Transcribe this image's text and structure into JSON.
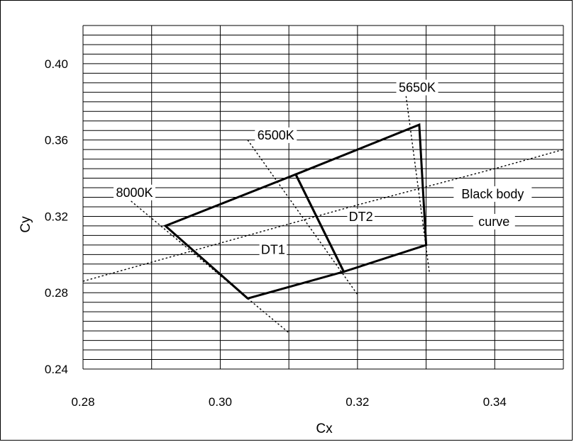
{
  "chart_data": {
    "type": "line",
    "title": "",
    "xlabel": "Cx",
    "ylabel": "Cy",
    "xlim": [
      0.28,
      0.35
    ],
    "ylim": [
      0.24,
      0.42
    ],
    "xticks": [
      "0.28",
      "0.30",
      "0.32",
      "0.34"
    ],
    "yticks": [
      "0.24",
      "0.28",
      "0.32",
      "0.36",
      "0.40"
    ],
    "grid": true,
    "series": [
      {
        "name": "DT1",
        "style": "solid",
        "points": [
          [
            0.311,
            0.342
          ],
          [
            0.292,
            0.315
          ],
          [
            0.304,
            0.277
          ],
          [
            0.318,
            0.291
          ]
        ]
      },
      {
        "name": "DT2",
        "style": "solid",
        "points": [
          [
            0.311,
            0.342
          ],
          [
            0.329,
            0.368
          ],
          [
            0.33,
            0.305
          ],
          [
            0.318,
            0.291
          ]
        ]
      },
      {
        "name": "Black body curve",
        "style": "dotted",
        "points": [
          [
            0.28,
            0.286
          ],
          [
            0.3,
            0.306
          ],
          [
            0.32,
            0.326
          ],
          [
            0.34,
            0.345
          ],
          [
            0.35,
            0.355
          ]
        ]
      },
      {
        "name": "8000K",
        "style": "dotted",
        "points": [
          [
            0.287,
            0.328
          ],
          [
            0.31,
            0.259
          ]
        ]
      },
      {
        "name": "6500K",
        "style": "dotted",
        "points": [
          [
            0.304,
            0.36
          ],
          [
            0.32,
            0.279
          ]
        ]
      },
      {
        "name": "5650K",
        "style": "dotted",
        "points": [
          [
            0.327,
            0.385
          ],
          [
            0.3305,
            0.29
          ]
        ]
      }
    ],
    "annotations": [
      {
        "text": "8000K",
        "x": 0.2875,
        "y": 0.3325
      },
      {
        "text": "6500K",
        "x": 0.3081,
        "y": 0.3625
      },
      {
        "text": "5650K",
        "x": 0.3287,
        "y": 0.3875
      },
      {
        "text": "DT1",
        "x": 0.3077,
        "y": 0.3025
      },
      {
        "text": "DT2",
        "x": 0.3205,
        "y": 0.3198
      },
      {
        "text": "Black body",
        "x": 0.3397,
        "y": 0.3317
      },
      {
        "text": "curve",
        "x": 0.3399,
        "y": 0.3172
      }
    ]
  }
}
